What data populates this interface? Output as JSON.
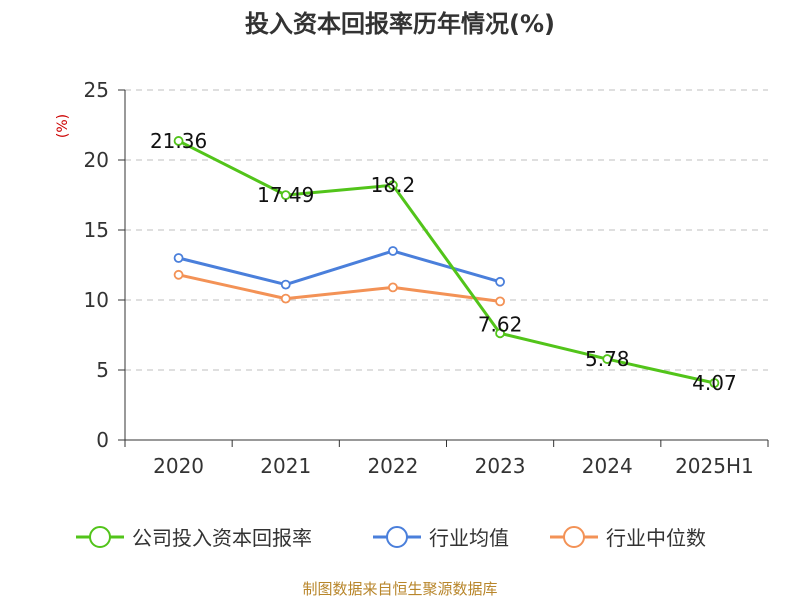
{
  "chart_data": {
    "type": "line",
    "title": "投入资本回报率历年情况(%)",
    "unit_label": "(%)",
    "categories": [
      "2020",
      "2021",
      "2022",
      "2023",
      "2024",
      "2025H1"
    ],
    "ylim": [
      0,
      25
    ],
    "yticks": [
      0,
      5,
      10,
      15,
      20,
      25
    ],
    "grid": true,
    "legend_position": "bottom",
    "series": [
      {
        "name": "公司投入资本回报率",
        "color": "#52c41a",
        "values": [
          21.36,
          17.49,
          18.2,
          7.62,
          5.78,
          4.07
        ],
        "data_labels": [
          "21.36",
          "17.49",
          "18.2",
          "7.62",
          "5.78",
          "4.07"
        ]
      },
      {
        "name": "行业均值",
        "color": "#4a7fdb",
        "values": [
          13.0,
          11.1,
          13.5,
          11.3,
          null,
          null
        ]
      },
      {
        "name": "行业中位数",
        "color": "#f39256",
        "values": [
          11.8,
          10.1,
          10.9,
          9.9,
          null,
          null
        ]
      }
    ]
  },
  "source_text": "制图数据来自恒生聚源数据库"
}
